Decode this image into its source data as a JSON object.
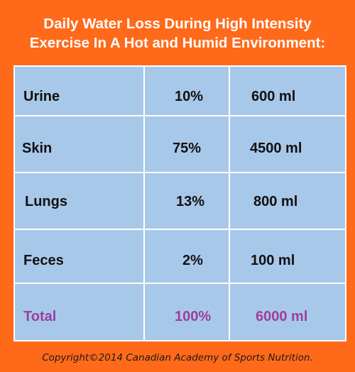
{
  "chart_data": {
    "type": "table",
    "title_lines": [
      "Daily Water Loss During High Intensity",
      "Exercise In A Hot and Humid Environment:"
    ],
    "rows": [
      {
        "label": "Urine",
        "percent": "10%",
        "amount": "600 ml"
      },
      {
        "label": "Skin",
        "percent": "75%",
        "amount": "4500 ml"
      },
      {
        "label": "Lungs",
        "percent": "13%",
        "amount": "800 ml"
      },
      {
        "label": "Feces",
        "percent": "2%",
        "amount": "100 ml"
      },
      {
        "label": "Total",
        "percent": "100%",
        "amount": "6000 ml"
      }
    ],
    "colors": {
      "background": "#ff6a1a",
      "table": "#a8c8ea",
      "grid": "#ffffff",
      "total_text": "#9b40a0"
    }
  },
  "footer": "Copyright©2014 Canadian Academy of Sports Nutrition."
}
